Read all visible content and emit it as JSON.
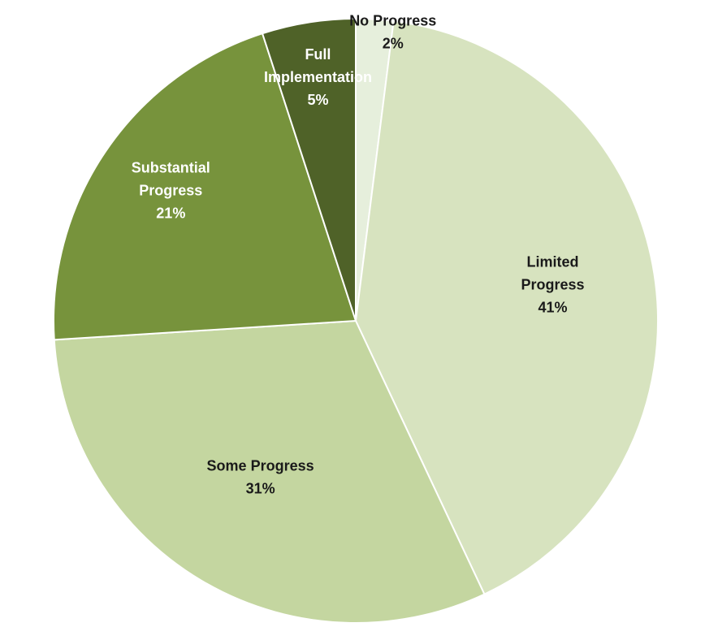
{
  "chart_data": {
    "type": "pie",
    "title": "",
    "start_angle_deg": 0,
    "direction": "clockwise",
    "slices": [
      {
        "label_lines": [
          "No Progress"
        ],
        "value": 2,
        "display": "2%",
        "color": "#e6efdc",
        "text_color": "#1a1a1a"
      },
      {
        "label_lines": [
          "Limited",
          "Progress"
        ],
        "value": 41,
        "display": "41%",
        "color": "#d7e3bf",
        "text_color": "#1a1a1a"
      },
      {
        "label_lines": [
          "Some Progress"
        ],
        "value": 31,
        "display": "31%",
        "color": "#c4d6a0",
        "text_color": "#1a1a1a"
      },
      {
        "label_lines": [
          "Substantial",
          "Progress"
        ],
        "value": 21,
        "display": "21%",
        "color": "#77933c",
        "text_color": "#ffffff"
      },
      {
        "label_lines": [
          "Full",
          "Implementation"
        ],
        "value": 5,
        "display": "5%",
        "color": "#4f6228",
        "text_color": "#ffffff"
      }
    ]
  }
}
